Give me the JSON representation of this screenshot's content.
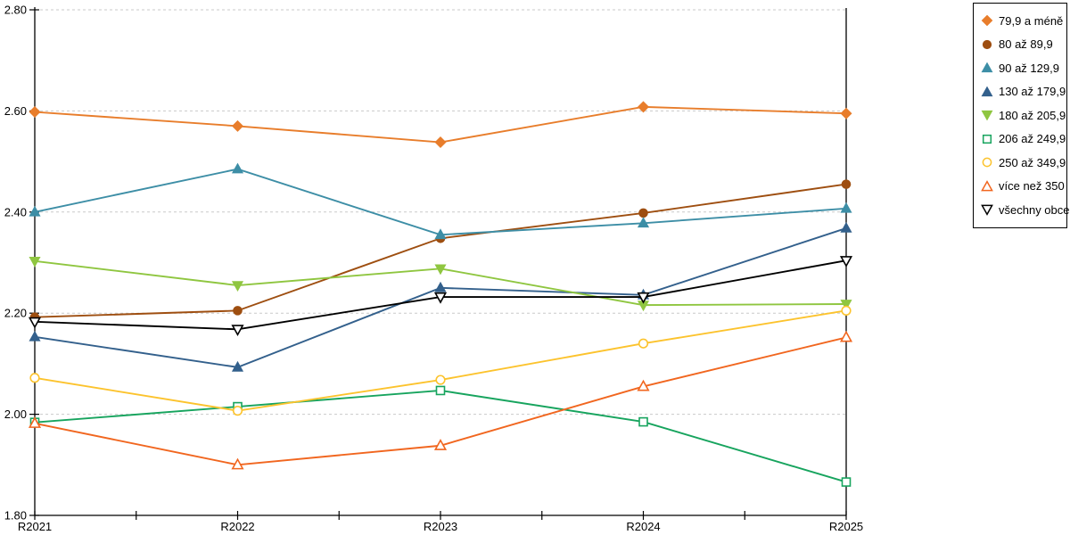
{
  "chart_data": {
    "type": "line",
    "title": "",
    "xlabel": "",
    "ylabel": "",
    "categories": [
      "R2021",
      "R2022",
      "R2023",
      "R2024",
      "R2025"
    ],
    "series": [
      {
        "name": "79,9 a méně",
        "color": "#E87D2B",
        "marker": "diamond",
        "fill": "filled",
        "values": [
          2.598,
          2.57,
          2.538,
          2.608,
          2.595
        ]
      },
      {
        "name": "80 až 89,9",
        "color": "#9E4E10",
        "marker": "circle",
        "fill": "filled",
        "values": [
          2.192,
          2.205,
          2.348,
          2.398,
          2.455
        ]
      },
      {
        "name": "90 až 129,9",
        "color": "#3D8EA6",
        "marker": "triangle-up",
        "fill": "filled",
        "values": [
          2.4,
          2.485,
          2.355,
          2.378,
          2.407
        ]
      },
      {
        "name": "130 až 179,9",
        "color": "#33608C",
        "marker": "triangle-up",
        "fill": "filled",
        "values": [
          2.153,
          2.093,
          2.25,
          2.236,
          2.368
        ]
      },
      {
        "name": "180 až 205,9",
        "color": "#8FC640",
        "marker": "triangle-down",
        "fill": "filled",
        "values": [
          2.303,
          2.255,
          2.288,
          2.216,
          2.218
        ]
      },
      {
        "name": "206 až 249,9",
        "color": "#17A45E",
        "marker": "square",
        "fill": "open",
        "values": [
          1.984,
          2.015,
          2.047,
          1.985,
          1.866
        ]
      },
      {
        "name": "250 až 349,9",
        "color": "#FCC32D",
        "marker": "circle",
        "fill": "open",
        "values": [
          2.072,
          2.007,
          2.068,
          2.14,
          2.205
        ]
      },
      {
        "name": "více než 350",
        "color": "#F1661F",
        "marker": "triangle-up",
        "fill": "open",
        "values": [
          1.982,
          1.9,
          1.938,
          2.055,
          2.152
        ]
      },
      {
        "name": "všechny obce",
        "color": "#000000",
        "marker": "triangle-down",
        "fill": "open",
        "values": [
          2.183,
          2.168,
          2.232,
          2.232,
          2.304
        ]
      }
    ],
    "ylim": [
      1.8,
      2.8
    ],
    "ytick_step": 0.2,
    "ytick_labels": [
      "1.80",
      "2.00",
      "2.20",
      "2.40",
      "2.60",
      "2.80"
    ],
    "grid": "horizontal dashed, minor x ticks at midpoints",
    "grid_color": "#C9C9C9",
    "axis_color": "#000000",
    "legend_position": "top-right"
  }
}
